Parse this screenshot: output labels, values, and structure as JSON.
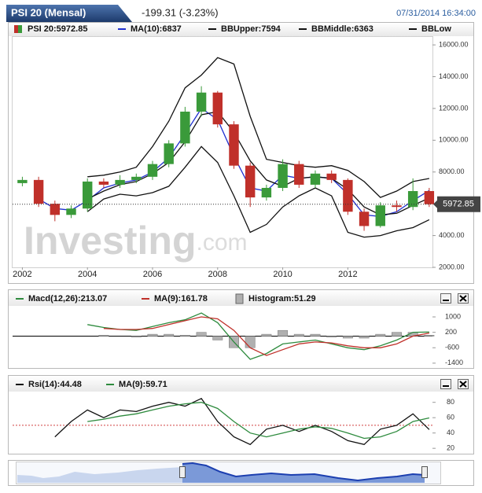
{
  "header": {
    "title": "PSI 20 (Mensal)",
    "change": "-199.31 (-3.23%)",
    "timestamp": "07/31/2014 16:34:00"
  },
  "chart_data": [
    {
      "type": "candlestick",
      "name": "PSI 20:5972.85",
      "watermark": [
        "Investing",
        ".com"
      ],
      "up_color": "#3a9a3a",
      "down_color": "#c0302a",
      "x": [
        2002.0,
        2002.5,
        2003.0,
        2003.5,
        2004.0,
        2004.5,
        2005.0,
        2005.5,
        2006.0,
        2006.5,
        2007.0,
        2007.5,
        2008.0,
        2008.5,
        2009.0,
        2009.5,
        2010.0,
        2010.5,
        2011.0,
        2011.5,
        2012.0,
        2012.5,
        2013.0,
        2013.5,
        2014.0,
        2014.5
      ],
      "open": [
        7300,
        7500,
        6000,
        5300,
        5700,
        7400,
        7200,
        7500,
        7700,
        8500,
        9800,
        11800,
        13000,
        11000,
        8400,
        6400,
        7000,
        8500,
        7200,
        7900,
        7500,
        5500,
        4600,
        5900,
        5800,
        6800
      ],
      "high": [
        7700,
        7700,
        6200,
        5900,
        7600,
        7600,
        7800,
        7900,
        8700,
        10000,
        12100,
        13400,
        13100,
        11200,
        8600,
        7200,
        8800,
        8700,
        8100,
        8100,
        7600,
        5700,
        6100,
        6200,
        7600,
        7000
      ],
      "low": [
        7100,
        5800,
        4900,
        5100,
        5500,
        7000,
        7000,
        7300,
        7500,
        8300,
        9600,
        11500,
        10800,
        8200,
        5800,
        6200,
        6800,
        7000,
        7000,
        7300,
        5300,
        4300,
        4500,
        5500,
        5600,
        5800
      ],
      "close": [
        7500,
        6000,
        5300,
        5700,
        7400,
        7200,
        7500,
        7700,
        8500,
        9800,
        11800,
        13000,
        11000,
        8400,
        6400,
        7000,
        8500,
        7200,
        7900,
        7500,
        5500,
        4600,
        5900,
        5800,
        6800,
        5972.85
      ],
      "series": [
        {
          "name": "MA(10):6837",
          "color": "#1f2fd0",
          "values": [
            null,
            6300,
            5700,
            5600,
            6200,
            7000,
            7300,
            7500,
            8000,
            8900,
            10400,
            12000,
            11300,
            9000,
            7000,
            6800,
            7800,
            7600,
            7700,
            7600,
            6600,
            5300,
            5200,
            5500,
            6200,
            6837
          ]
        },
        {
          "name": "BBUpper:7594",
          "color": "#111111",
          "values": [
            null,
            null,
            null,
            null,
            7700,
            7800,
            8000,
            8300,
            9600,
            11200,
            13300,
            14100,
            15200,
            14800,
            11500,
            8800,
            8600,
            8400,
            8300,
            8400,
            8100,
            7400,
            6400,
            6800,
            7400,
            7594
          ]
        },
        {
          "name": "BBMiddle:6363",
          "color": "#111111",
          "values": [
            null,
            null,
            null,
            null,
            6300,
            6800,
            7200,
            7400,
            7900,
            8600,
            9900,
            11600,
            11800,
            10500,
            8700,
            7500,
            7100,
            7600,
            7700,
            7600,
            6900,
            5800,
            5300,
            5400,
            5900,
            6363
          ]
        },
        {
          "name": "BBLow",
          "color": "#111111",
          "values": [
            null,
            null,
            null,
            null,
            5500,
            6300,
            6600,
            6500,
            6700,
            7100,
            8300,
            9600,
            8600,
            6500,
            4200,
            4700,
            5800,
            6500,
            7000,
            6500,
            4200,
            3900,
            4000,
            4300,
            4500,
            5000
          ]
        }
      ],
      "xlim": [
        2001.7,
        2014.6
      ],
      "xticks": [
        2002,
        2004,
        2006,
        2008,
        2010,
        2012
      ],
      "ylim": [
        2000,
        16500
      ],
      "yticks": [
        {
          "value": 2000,
          "label": "2000.00"
        },
        {
          "value": 4000,
          "label": "4000.00"
        },
        {
          "value": 6000,
          "label": "6000.00"
        },
        {
          "value": 8000,
          "label": "8000.00"
        },
        {
          "value": 10000,
          "label": "10000.00"
        },
        {
          "value": 12000,
          "label": "12000.00"
        },
        {
          "value": 14000,
          "label": "14000.00"
        },
        {
          "value": 16000,
          "label": "16000.00"
        }
      ]
    },
    {
      "type": "line",
      "hline": 0,
      "hline_color": "#000000",
      "x": [
        2002.0,
        2002.5,
        2003.0,
        2003.5,
        2004.0,
        2004.5,
        2005.0,
        2005.5,
        2006.0,
        2006.5,
        2007.0,
        2007.5,
        2008.0,
        2008.5,
        2009.0,
        2009.5,
        2010.0,
        2010.5,
        2011.0,
        2011.5,
        2012.0,
        2012.5,
        2013.0,
        2013.5,
        2014.0,
        2014.5
      ],
      "series": [
        {
          "name": "Macd(12,26):213.07",
          "color": "#2e8b3e",
          "style": "line",
          "values": [
            null,
            null,
            null,
            null,
            600,
            450,
            350,
            300,
            500,
            700,
            850,
            1200,
            700,
            -300,
            -1200,
            -900,
            -400,
            -300,
            -200,
            -400,
            -600,
            -700,
            -500,
            -200,
            200,
            213.07
          ]
        },
        {
          "name": "MA(9):161.78",
          "color": "#c0302a",
          "style": "line",
          "values": [
            null,
            null,
            null,
            null,
            null,
            400,
            350,
            350,
            400,
            600,
            800,
            1000,
            900,
            300,
            -600,
            -1000,
            -700,
            -400,
            -300,
            -350,
            -500,
            -600,
            -600,
            -400,
            0,
            161.78
          ]
        },
        {
          "name": "Histogram:51.29",
          "color": "#b0b0b0",
          "style": "bar",
          "values": [
            null,
            null,
            null,
            null,
            null,
            50,
            0,
            -50,
            100,
            100,
            50,
            200,
            -200,
            -600,
            -600,
            100,
            300,
            100,
            100,
            -50,
            -100,
            -100,
            100,
            200,
            200,
            51.29
          ]
        }
      ],
      "xlim": [
        2001.7,
        2014.6
      ],
      "ylim": [
        -1650,
        1450
      ],
      "yticks": [
        1000,
        200,
        -600,
        -1400
      ]
    },
    {
      "type": "line",
      "hline": 50,
      "hline_color": "#d04040",
      "x": [
        2002.0,
        2002.5,
        2003.0,
        2003.5,
        2004.0,
        2004.5,
        2005.0,
        2005.5,
        2006.0,
        2006.5,
        2007.0,
        2007.5,
        2008.0,
        2008.5,
        2009.0,
        2009.5,
        2010.0,
        2010.5,
        2011.0,
        2011.5,
        2012.0,
        2012.5,
        2013.0,
        2013.5,
        2014.0,
        2014.5
      ],
      "series": [
        {
          "name": "Rsi(14):44.48",
          "color": "#111111",
          "style": "line",
          "values": [
            null,
            null,
            35,
            55,
            70,
            60,
            70,
            68,
            75,
            80,
            75,
            85,
            55,
            35,
            25,
            45,
            50,
            42,
            50,
            42,
            30,
            25,
            45,
            50,
            65,
            44.48
          ]
        },
        {
          "name": "MA(9):59.71",
          "color": "#2e8b3e",
          "style": "line",
          "values": [
            null,
            null,
            null,
            null,
            55,
            58,
            62,
            65,
            70,
            75,
            78,
            80,
            72,
            55,
            40,
            35,
            40,
            45,
            48,
            46,
            40,
            33,
            35,
            42,
            55,
            59.71
          ]
        }
      ],
      "xlim": [
        2001.7,
        2014.6
      ],
      "ylim": [
        13,
        92
      ],
      "yticks": [
        80,
        60,
        40,
        20
      ]
    }
  ]
}
